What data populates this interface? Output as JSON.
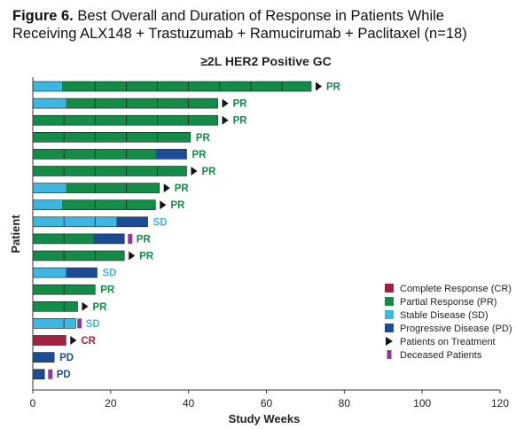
{
  "figure": {
    "number": "Figure 6.",
    "caption_line1": "Best Overall and Duration of Response in Patients While",
    "caption_line2": "Receiving ALX148 + Trastuzumab + Ramucirumab + Paclitaxel (n=18)"
  },
  "colors": {
    "CR": "#a3203e",
    "PR": "#128c47",
    "SD": "#3db6e2",
    "PD": "#1c4c96",
    "treatment_marker": "#111111",
    "deceased_marker": "#8e3a96"
  },
  "chart_data": {
    "type": "bar",
    "orientation": "horizontal-stacked-swimmer",
    "title": "≥2L HER2 Positive GC",
    "xlabel": "Study Weeks",
    "ylabel": "Patient",
    "xlim": [
      0,
      120
    ],
    "xticks": [
      0,
      20,
      40,
      60,
      80,
      100,
      120
    ],
    "xtick_labels": [
      "0",
      "20",
      "40",
      "60",
      "80",
      "100",
      "120"
    ],
    "legend_position": "bottom-right",
    "legend": [
      {
        "key": "CR",
        "label": "Complete Response (CR)",
        "kind": "box"
      },
      {
        "key": "PR",
        "label": "Partial Response (PR)",
        "kind": "box"
      },
      {
        "key": "SD",
        "label": "Stable Disease (SD)",
        "kind": "box"
      },
      {
        "key": "PD",
        "label": "Progressive Disease (PD)",
        "kind": "box"
      },
      {
        "key": "ontx",
        "label": "Patients on Treatment",
        "kind": "triangle"
      },
      {
        "key": "deceased",
        "label": "Deceased Patients",
        "kind": "bar"
      }
    ],
    "patients": [
      {
        "best": "PR",
        "segments": [
          {
            "status": "SD",
            "start": 0,
            "end": 7.5
          },
          {
            "status": "PR",
            "start": 7.5,
            "end": 71.5
          }
        ],
        "cycles": [
          16,
          24,
          32,
          40,
          48,
          56,
          64
        ],
        "on_treatment": true,
        "deceased": null
      },
      {
        "best": "PR",
        "segments": [
          {
            "status": "SD",
            "start": 0,
            "end": 8.5
          },
          {
            "status": "PR",
            "start": 8.5,
            "end": 47.5
          }
        ],
        "cycles": [
          16,
          24,
          32,
          40
        ],
        "on_treatment": true,
        "deceased": null
      },
      {
        "best": "PR",
        "segments": [
          {
            "status": "PR",
            "start": 0,
            "end": 47.5
          }
        ],
        "cycles": [
          8,
          16,
          24,
          32,
          40
        ],
        "on_treatment": true,
        "deceased": null
      },
      {
        "best": "PR",
        "segments": [
          {
            "status": "PR",
            "start": 0,
            "end": 40.5
          }
        ],
        "cycles": [
          8,
          16,
          24,
          32
        ],
        "on_treatment": false,
        "deceased": null
      },
      {
        "best": "PR",
        "segments": [
          {
            "status": "PR",
            "start": 0,
            "end": 31.5
          },
          {
            "status": "PD",
            "start": 31.5,
            "end": 39.5
          }
        ],
        "cycles": [
          8,
          16,
          24
        ],
        "on_treatment": false,
        "deceased": null
      },
      {
        "best": "PR",
        "segments": [
          {
            "status": "PR",
            "start": 0,
            "end": 39.5
          }
        ],
        "cycles": [
          8,
          16,
          24,
          32
        ],
        "on_treatment": true,
        "deceased": null
      },
      {
        "best": "PR",
        "segments": [
          {
            "status": "SD",
            "start": 0,
            "end": 8.5
          },
          {
            "status": "PR",
            "start": 8.5,
            "end": 32.5
          }
        ],
        "cycles": [
          16,
          24
        ],
        "on_treatment": true,
        "deceased": null
      },
      {
        "best": "PR",
        "segments": [
          {
            "status": "SD",
            "start": 0,
            "end": 7.5
          },
          {
            "status": "PR",
            "start": 7.5,
            "end": 31.5
          }
        ],
        "cycles": [
          16,
          24
        ],
        "on_treatment": true,
        "deceased": null
      },
      {
        "best": "SD",
        "segments": [
          {
            "status": "SD",
            "start": 0,
            "end": 21.5
          },
          {
            "status": "PD",
            "start": 21.5,
            "end": 29.5
          }
        ],
        "cycles": [
          8,
          16
        ],
        "on_treatment": false,
        "deceased": null
      },
      {
        "best": "PR",
        "segments": [
          {
            "status": "PR",
            "start": 0,
            "end": 15.5
          },
          {
            "status": "PD",
            "start": 15.5,
            "end": 23.5
          }
        ],
        "cycles": [
          8
        ],
        "on_treatment": false,
        "deceased": 25
      },
      {
        "best": "PR",
        "segments": [
          {
            "status": "PR",
            "start": 0,
            "end": 23.5
          }
        ],
        "cycles": [
          8,
          16
        ],
        "on_treatment": true,
        "deceased": null
      },
      {
        "best": "SD",
        "segments": [
          {
            "status": "SD",
            "start": 0,
            "end": 8.5
          },
          {
            "status": "PD",
            "start": 8.5,
            "end": 16.5
          }
        ],
        "cycles": [],
        "on_treatment": false,
        "deceased": null
      },
      {
        "best": "PR",
        "segments": [
          {
            "status": "PR",
            "start": 0,
            "end": 16
          }
        ],
        "cycles": [
          8
        ],
        "on_treatment": false,
        "deceased": null
      },
      {
        "best": "PR",
        "segments": [
          {
            "status": "PR",
            "start": 0,
            "end": 11.5
          }
        ],
        "cycles": [
          8
        ],
        "on_treatment": true,
        "deceased": null
      },
      {
        "best": "SD",
        "segments": [
          {
            "status": "SD",
            "start": 0,
            "end": 11
          }
        ],
        "cycles": [
          8
        ],
        "on_treatment": false,
        "deceased": 12
      },
      {
        "best": "CR",
        "segments": [
          {
            "status": "CR",
            "start": 0,
            "end": 8.5
          }
        ],
        "cycles": [],
        "on_treatment": true,
        "deceased": null
      },
      {
        "best": "PD",
        "segments": [
          {
            "status": "PD",
            "start": 0,
            "end": 5.5
          }
        ],
        "cycles": [],
        "on_treatment": false,
        "deceased": null
      },
      {
        "best": "PD",
        "segments": [
          {
            "status": "PD",
            "start": 0,
            "end": 3
          }
        ],
        "cycles": [],
        "on_treatment": false,
        "deceased": 4.5
      }
    ]
  }
}
